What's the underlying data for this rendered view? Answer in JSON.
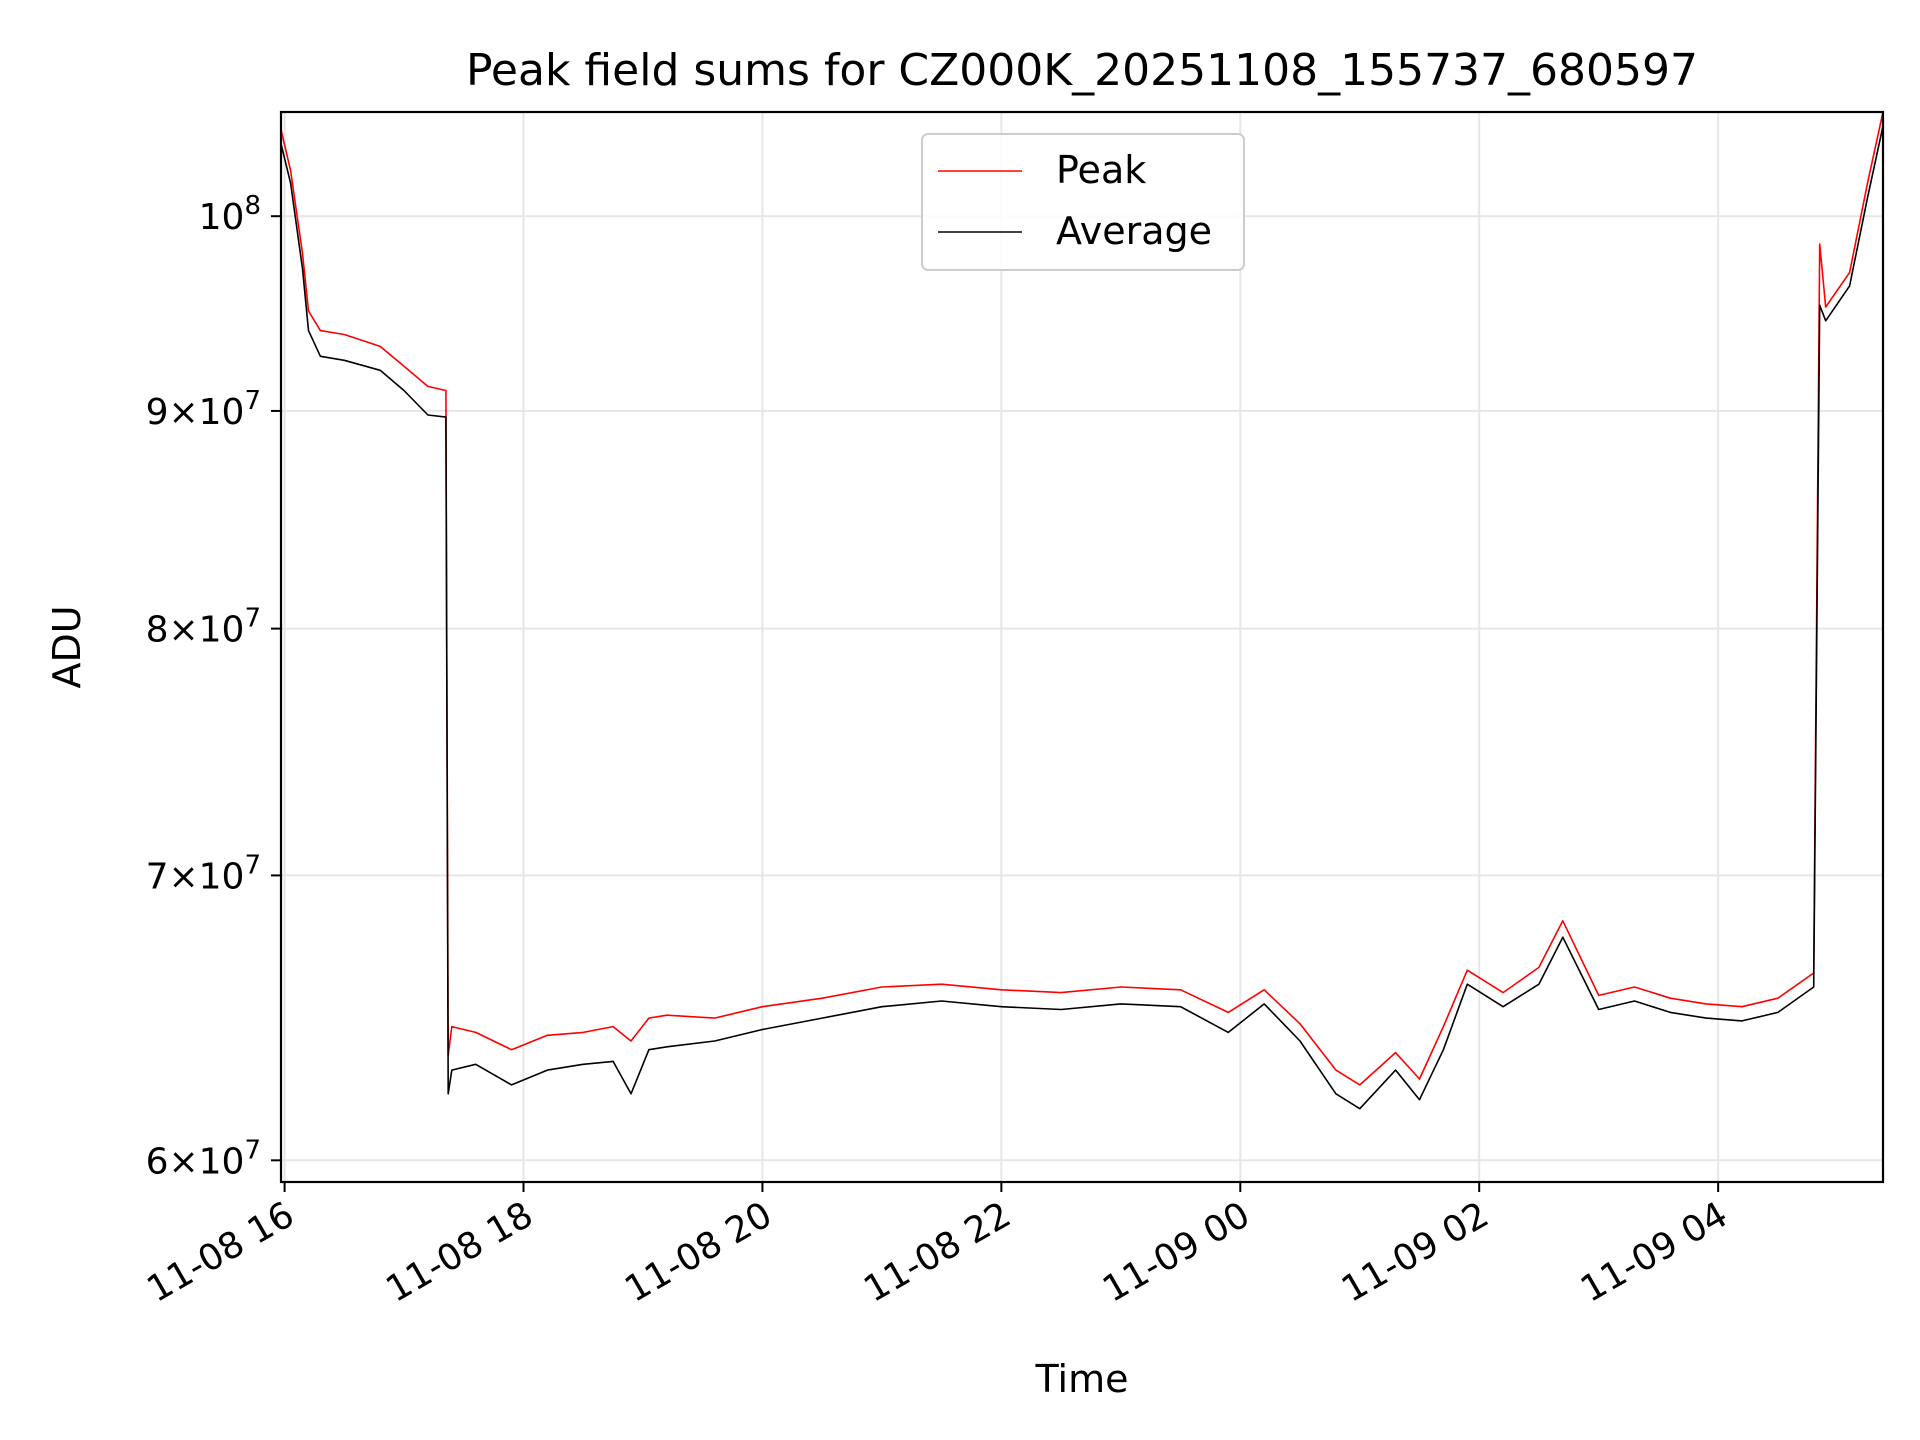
{
  "chart_data": {
    "type": "line",
    "title": "Peak field sums for CZ000K_20251108_155737_680597",
    "xlabel": "Time",
    "ylabel": "ADU",
    "yscale": "log",
    "xlim_hours": [
      15.97,
      29.38
    ],
    "ylim": [
      59300000,
      105800000
    ],
    "grid": true,
    "legend_position": "top-center",
    "x_ticks": [
      {
        "hours": 16,
        "label": "11-08 16"
      },
      {
        "hours": 18,
        "label": "11-08 18"
      },
      {
        "hours": 20,
        "label": "11-08 20"
      },
      {
        "hours": 22,
        "label": "11-08 22"
      },
      {
        "hours": 24,
        "label": "11-09 00"
      },
      {
        "hours": 26,
        "label": "11-09 02"
      },
      {
        "hours": 28,
        "label": "11-09 04"
      }
    ],
    "y_ticks": [
      {
        "value": 60000000,
        "mantissa": "6",
        "exponent": "7"
      },
      {
        "value": 70000000,
        "mantissa": "7",
        "exponent": "7"
      },
      {
        "value": 80000000,
        "mantissa": "8",
        "exponent": "7"
      },
      {
        "value": 90000000,
        "mantissa": "9",
        "exponent": "7"
      },
      {
        "value": 100000000,
        "mantissa": "",
        "exponent": "8"
      }
    ],
    "tick_base": "10",
    "times_symbol": "×",
    "series": [
      {
        "name": "Peak",
        "color": "#ff0000",
        "x_hours": [
          15.97,
          16.05,
          16.15,
          16.2,
          16.3,
          16.5,
          16.8,
          17.0,
          17.2,
          17.35,
          17.37,
          17.4,
          17.6,
          17.9,
          18.2,
          18.5,
          18.75,
          18.9,
          19.05,
          19.2,
          19.6,
          20.0,
          20.5,
          21.0,
          21.5,
          22.0,
          22.5,
          23.0,
          23.5,
          23.9,
          24.2,
          24.5,
          24.8,
          25.0,
          25.3,
          25.5,
          25.7,
          25.9,
          26.2,
          26.5,
          26.7,
          27.0,
          27.3,
          27.6,
          27.9,
          28.2,
          28.5,
          28.8,
          28.85,
          28.9,
          29.1,
          29.25,
          29.38
        ],
        "values": [
          104800000,
          102500000,
          98000000,
          95000000,
          94000000,
          93800000,
          93200000,
          92200000,
          91200000,
          91000000,
          63500000,
          64500000,
          64300000,
          63700000,
          64200000,
          64300000,
          64500000,
          64000000,
          64800000,
          64900000,
          64800000,
          65200000,
          65500000,
          65900000,
          66000000,
          65800000,
          65700000,
          65900000,
          65800000,
          65000000,
          65800000,
          64600000,
          63000000,
          62500000,
          63600000,
          62700000,
          64500000,
          66500000,
          65700000,
          66600000,
          68300000,
          65600000,
          65900000,
          65500000,
          65300000,
          65200000,
          65500000,
          66400000,
          98500000,
          95200000,
          97000000,
          101800000,
          105800000
        ]
      },
      {
        "name": "Average",
        "color": "#000000",
        "x_hours": [
          15.97,
          16.05,
          16.15,
          16.2,
          16.3,
          16.5,
          16.8,
          17.0,
          17.2,
          17.35,
          17.37,
          17.4,
          17.6,
          17.9,
          18.2,
          18.5,
          18.75,
          18.9,
          19.05,
          19.2,
          19.6,
          20.0,
          20.5,
          21.0,
          21.5,
          22.0,
          22.5,
          23.0,
          23.5,
          23.9,
          24.2,
          24.5,
          24.8,
          25.0,
          25.3,
          25.5,
          25.7,
          25.9,
          26.2,
          26.5,
          26.7,
          27.0,
          27.3,
          27.6,
          27.9,
          28.2,
          28.5,
          28.8,
          28.85,
          28.9,
          29.1,
          29.25,
          29.38
        ],
        "values": [
          104000000,
          101800000,
          97200000,
          94000000,
          92700000,
          92500000,
          92000000,
          91000000,
          89800000,
          89700000,
          62200000,
          63000000,
          63200000,
          62500000,
          63000000,
          63200000,
          63300000,
          62200000,
          63700000,
          63800000,
          64000000,
          64400000,
          64800000,
          65200000,
          65400000,
          65200000,
          65100000,
          65300000,
          65200000,
          64300000,
          65300000,
          64000000,
          62200000,
          61700000,
          63000000,
          62000000,
          63700000,
          66000000,
          65200000,
          66000000,
          67700000,
          65100000,
          65400000,
          65000000,
          64800000,
          64700000,
          65000000,
          65900000,
          95300000,
          94500000,
          96300000,
          101000000,
          105000000
        ]
      }
    ]
  }
}
